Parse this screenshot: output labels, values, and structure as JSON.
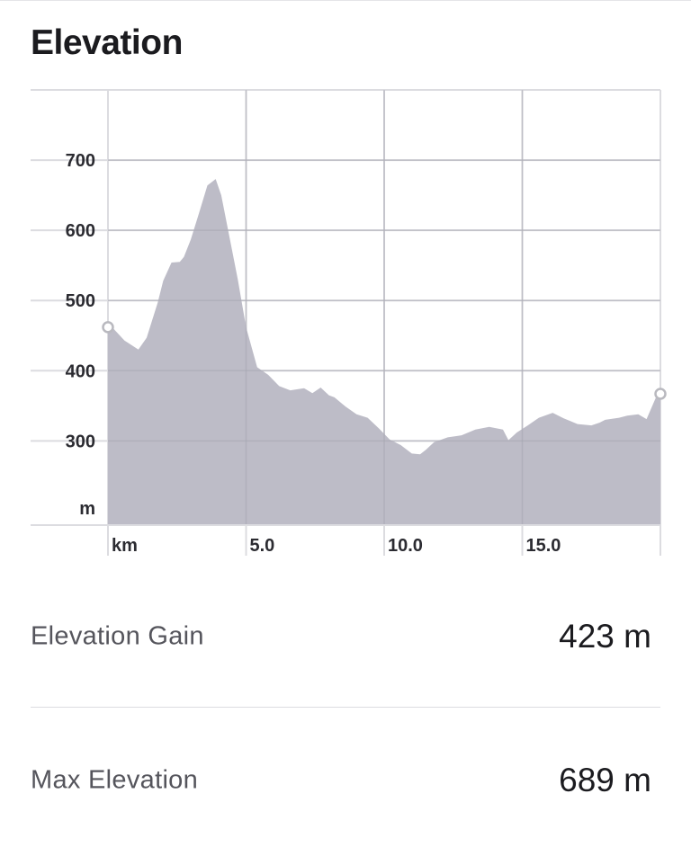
{
  "header": {
    "title": "Elevation"
  },
  "chart_data": {
    "type": "area",
    "title": "",
    "xlabel": "km",
    "ylabel": "m",
    "x_unit_label": "km",
    "y_unit_label": "m",
    "xlim": [
      0,
      20
    ],
    "ylim": [
      180,
      800
    ],
    "xticks": [
      {
        "value": 5,
        "label": "5.0"
      },
      {
        "value": 10,
        "label": "10.0"
      },
      {
        "value": 15,
        "label": "15.0"
      }
    ],
    "yticks": [
      {
        "value": 300,
        "label": "300"
      },
      {
        "value": 400,
        "label": "400"
      },
      {
        "value": 500,
        "label": "500"
      },
      {
        "value": 600,
        "label": "600"
      },
      {
        "value": 700,
        "label": "700"
      }
    ],
    "grid": true,
    "fill_color": "#bdbcc7",
    "marker_color": "#b9b9bf",
    "series": [
      {
        "x": [
          0,
          0.15,
          0.6,
          1.1,
          1.4,
          1.8,
          2.0,
          2.3,
          2.6,
          2.75,
          3.0,
          3.3,
          3.6,
          3.9,
          4.1,
          4.4,
          4.7,
          5.0,
          5.4,
          5.8,
          6.2,
          6.6,
          7.1,
          7.4,
          7.7,
          8.0,
          8.2,
          8.6,
          9.0,
          9.4,
          9.8,
          10.2,
          10.6,
          11.0,
          11.3,
          11.5,
          11.8,
          12.3,
          12.8,
          13.3,
          13.8,
          14.3,
          14.5,
          14.8,
          15.2,
          15.6,
          16.1,
          16.5,
          17.0,
          17.5,
          17.8,
          18.0,
          18.5,
          18.8,
          19.2,
          19.5,
          19.85,
          20.0
        ],
        "y": [
          462,
          462,
          443,
          430,
          447,
          497,
          528,
          554,
          555,
          562,
          587,
          625,
          664,
          673,
          650,
          590,
          530,
          462,
          405,
          394,
          378,
          372,
          375,
          368,
          376,
          365,
          362,
          349,
          338,
          333,
          318,
          302,
          294,
          282,
          281,
          287,
          298,
          305,
          308,
          316,
          320,
          316,
          301,
          312,
          322,
          333,
          340,
          332,
          324,
          322,
          326,
          330,
          333,
          336,
          338,
          331,
          363,
          367
        ]
      }
    ],
    "start_point": {
      "x": 0,
      "y": 462
    },
    "end_point": {
      "x": 20,
      "y": 367
    }
  },
  "stats": [
    {
      "label": "Elevation Gain",
      "value": "423 m"
    },
    {
      "label": "Max Elevation",
      "value": "689 m"
    }
  ]
}
